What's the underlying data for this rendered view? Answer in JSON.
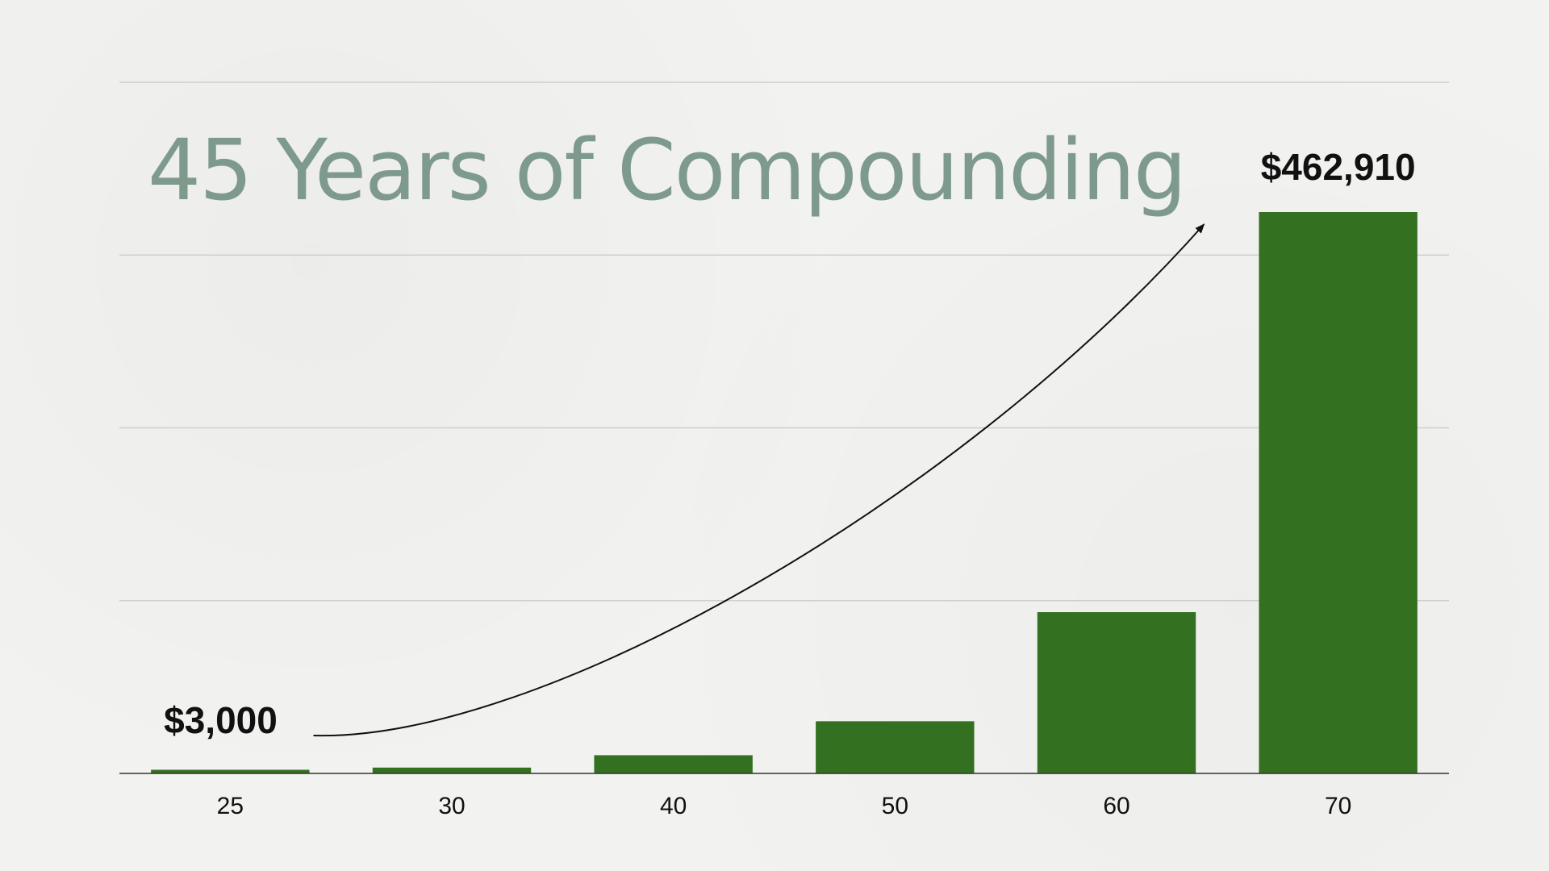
{
  "slide": {
    "title": "45 Years of Compounding"
  },
  "colors": {
    "title": "#7e9a8c",
    "bar": "#33701f",
    "gridline": "#cfcfcd",
    "axis": "#333333",
    "arrow": "#111111"
  },
  "chart_data": {
    "type": "bar",
    "title": "45 Years of Compounding",
    "xlabel": "",
    "ylabel": "",
    "categories": [
      "25",
      "30",
      "40",
      "50",
      "60",
      "70"
    ],
    "series": [
      {
        "values": [
          3000,
          4800,
          15000,
          43000,
          133000,
          462910
        ]
      }
    ],
    "ylim": [
      0,
      570000
    ],
    "grid": true,
    "legend": "none",
    "annotations": [
      {
        "text": "$3,000",
        "category": "25"
      },
      {
        "text": "$462,910",
        "category": "70"
      }
    ],
    "growth_arrow": {
      "from": "25",
      "to": "70"
    }
  }
}
